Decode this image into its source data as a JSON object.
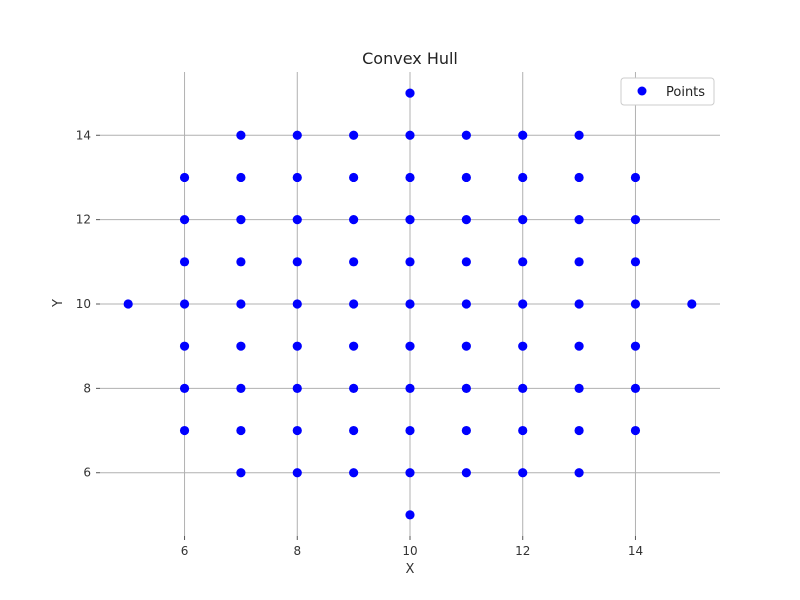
{
  "chart_data": {
    "type": "scatter",
    "title": "Convex Hull",
    "xlabel": "X",
    "ylabel": "Y",
    "xlim": [
      4.5,
      15.5
    ],
    "ylim": [
      4.5,
      15.5
    ],
    "xticks": [
      6,
      8,
      10,
      12,
      14
    ],
    "yticks": [
      6,
      8,
      10,
      12,
      14
    ],
    "grid": true,
    "legend_position": "top-right",
    "series": [
      {
        "name": "Points",
        "color": "#0000ff",
        "points": [
          [
            10,
            15
          ],
          [
            7,
            14
          ],
          [
            8,
            14
          ],
          [
            9,
            14
          ],
          [
            10,
            14
          ],
          [
            11,
            14
          ],
          [
            12,
            14
          ],
          [
            13,
            14
          ],
          [
            6,
            13
          ],
          [
            7,
            13
          ],
          [
            8,
            13
          ],
          [
            9,
            13
          ],
          [
            10,
            13
          ],
          [
            11,
            13
          ],
          [
            12,
            13
          ],
          [
            13,
            13
          ],
          [
            14,
            13
          ],
          [
            6,
            12
          ],
          [
            7,
            12
          ],
          [
            8,
            12
          ],
          [
            9,
            12
          ],
          [
            10,
            12
          ],
          [
            11,
            12
          ],
          [
            12,
            12
          ],
          [
            13,
            12
          ],
          [
            14,
            12
          ],
          [
            6,
            11
          ],
          [
            7,
            11
          ],
          [
            8,
            11
          ],
          [
            9,
            11
          ],
          [
            10,
            11
          ],
          [
            11,
            11
          ],
          [
            12,
            11
          ],
          [
            13,
            11
          ],
          [
            14,
            11
          ],
          [
            5,
            10
          ],
          [
            6,
            10
          ],
          [
            7,
            10
          ],
          [
            8,
            10
          ],
          [
            9,
            10
          ],
          [
            10,
            10
          ],
          [
            11,
            10
          ],
          [
            12,
            10
          ],
          [
            13,
            10
          ],
          [
            14,
            10
          ],
          [
            15,
            10
          ],
          [
            6,
            9
          ],
          [
            7,
            9
          ],
          [
            8,
            9
          ],
          [
            9,
            9
          ],
          [
            10,
            9
          ],
          [
            11,
            9
          ],
          [
            12,
            9
          ],
          [
            13,
            9
          ],
          [
            14,
            9
          ],
          [
            6,
            8
          ],
          [
            7,
            8
          ],
          [
            8,
            8
          ],
          [
            9,
            8
          ],
          [
            10,
            8
          ],
          [
            11,
            8
          ],
          [
            12,
            8
          ],
          [
            13,
            8
          ],
          [
            14,
            8
          ],
          [
            6,
            7
          ],
          [
            7,
            7
          ],
          [
            8,
            7
          ],
          [
            9,
            7
          ],
          [
            10,
            7
          ],
          [
            11,
            7
          ],
          [
            12,
            7
          ],
          [
            13,
            7
          ],
          [
            14,
            7
          ],
          [
            7,
            6
          ],
          [
            8,
            6
          ],
          [
            9,
            6
          ],
          [
            10,
            6
          ],
          [
            11,
            6
          ],
          [
            12,
            6
          ],
          [
            13,
            6
          ],
          [
            10,
            5
          ]
        ]
      }
    ]
  }
}
